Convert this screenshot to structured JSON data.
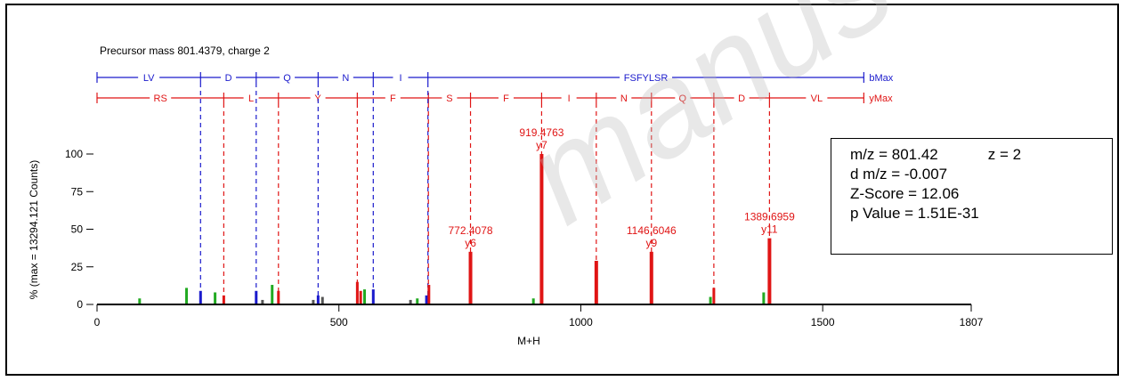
{
  "watermark": "manuscript",
  "colors": {
    "b_ions": "#1a1acc",
    "y_ions": "#e01515",
    "other_peaks": "#555555",
    "green_peaks": "#22aa22",
    "axis": "#000000"
  },
  "stats": {
    "mz": "m/z = 801.42",
    "z": "z = 2",
    "dmz": "d m/z = -0.007",
    "zscore": "Z-Score = 12.06",
    "pvalue": "p Value = 1.51E-31"
  },
  "chart_data": {
    "type": "bar",
    "title": "Precursor mass 801.4379, charge 2",
    "xlabel": "M+H",
    "ylabel": "% (max = 13294.121 Counts)",
    "xlim": [
      0,
      1807
    ],
    "ylim": [
      0,
      100
    ],
    "x_ticks": [
      0,
      500,
      1000,
      1500,
      1807
    ],
    "y_ticks": [
      0,
      25,
      50,
      75,
      100
    ],
    "b_ladder": {
      "end_label": "bMax",
      "segments": [
        {
          "label": "LV",
          "from": 0,
          "to": 214
        },
        {
          "label": "D",
          "from": 214,
          "to": 329
        },
        {
          "label": "Q",
          "from": 329,
          "to": 457
        },
        {
          "label": "N",
          "from": 457,
          "to": 571
        },
        {
          "label": "I",
          "from": 571,
          "to": 684
        },
        {
          "label": "FSFYLSR",
          "from": 684,
          "to": 1585
        }
      ]
    },
    "y_ladder": {
      "end_label": "yMax",
      "segments": [
        {
          "label": "RS",
          "from": 0,
          "to": 262
        },
        {
          "label": "L",
          "from": 262,
          "to": 375
        },
        {
          "label": "Y",
          "from": 375,
          "to": 538
        },
        {
          "label": "F",
          "from": 538,
          "to": 685
        },
        {
          "label": "S",
          "from": 685,
          "to": 772
        },
        {
          "label": "F",
          "from": 772,
          "to": 919
        },
        {
          "label": "I",
          "from": 919,
          "to": 1032
        },
        {
          "label": "N",
          "from": 1032,
          "to": 1146
        },
        {
          "label": "Q",
          "from": 1146,
          "to": 1275
        },
        {
          "label": "D",
          "from": 1275,
          "to": 1390
        },
        {
          "label": "VL",
          "from": 1390,
          "to": 1585
        }
      ]
    },
    "peaks": [
      {
        "mz": 88,
        "intensity": 4,
        "type": "green"
      },
      {
        "mz": 185,
        "intensity": 11,
        "type": "green"
      },
      {
        "mz": 214,
        "intensity": 9,
        "type": "b"
      },
      {
        "mz": 244,
        "intensity": 8,
        "type": "green"
      },
      {
        "mz": 262,
        "intensity": 6,
        "type": "y"
      },
      {
        "mz": 329,
        "intensity": 9,
        "type": "b"
      },
      {
        "mz": 342,
        "intensity": 3,
        "type": "other"
      },
      {
        "mz": 362,
        "intensity": 13,
        "type": "green"
      },
      {
        "mz": 375,
        "intensity": 9,
        "type": "y"
      },
      {
        "mz": 447,
        "intensity": 3,
        "type": "other"
      },
      {
        "mz": 457,
        "intensity": 6,
        "type": "b"
      },
      {
        "mz": 466,
        "intensity": 5,
        "type": "other"
      },
      {
        "mz": 538,
        "intensity": 15,
        "type": "y"
      },
      {
        "mz": 545,
        "intensity": 9,
        "type": "y"
      },
      {
        "mz": 553,
        "intensity": 10,
        "type": "green"
      },
      {
        "mz": 571,
        "intensity": 10,
        "type": "b"
      },
      {
        "mz": 648,
        "intensity": 3,
        "type": "other"
      },
      {
        "mz": 662,
        "intensity": 4,
        "type": "green"
      },
      {
        "mz": 681,
        "intensity": 6,
        "type": "b"
      },
      {
        "mz": 686,
        "intensity": 13,
        "type": "y"
      },
      {
        "mz": 772,
        "intensity": 35,
        "type": "y"
      },
      {
        "mz": 902,
        "intensity": 4,
        "type": "green"
      },
      {
        "mz": 919,
        "intensity": 100,
        "type": "y"
      },
      {
        "mz": 1032,
        "intensity": 29,
        "type": "y"
      },
      {
        "mz": 1146,
        "intensity": 35,
        "type": "y"
      },
      {
        "mz": 1268,
        "intensity": 5,
        "type": "green"
      },
      {
        "mz": 1275,
        "intensity": 11,
        "type": "y"
      },
      {
        "mz": 1378,
        "intensity": 8,
        "type": "green"
      },
      {
        "mz": 1390,
        "intensity": 44,
        "type": "y"
      }
    ],
    "annotations": [
      {
        "mz": 772,
        "intensity": 35,
        "value": "772.4078",
        "ion": "y6"
      },
      {
        "mz": 919,
        "intensity": 100,
        "value": "919.4763",
        "ion": "y7"
      },
      {
        "mz": 1146,
        "intensity": 35,
        "value": "1146.6046",
        "ion": "y9"
      },
      {
        "mz": 1390,
        "intensity": 44,
        "value": "1389.6959",
        "ion": "y11"
      }
    ]
  }
}
